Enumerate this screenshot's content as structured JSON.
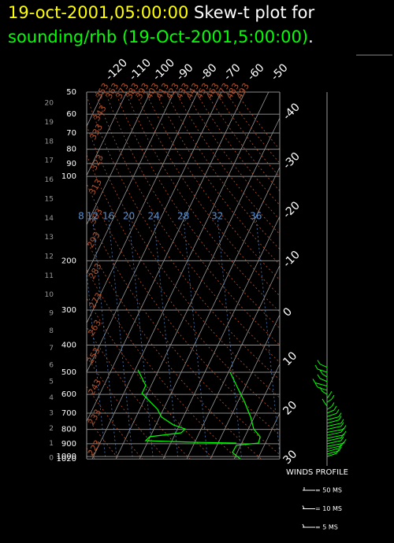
{
  "header": {
    "date": "19-oct-2001,05:00:00",
    "title": "Skew-t plot for",
    "source": "sounding/rhb (19-Oct-2001,5:00:00)",
    "end": "."
  },
  "chart_data": {
    "type": "skewt",
    "pressure_ticks": [
      50,
      60,
      70,
      80,
      90,
      100,
      200,
      300,
      400,
      500,
      600,
      700,
      800,
      900,
      1000,
      1020
    ],
    "height_ticks": [
      0,
      1,
      2,
      3,
      4,
      5,
      6,
      7,
      8,
      9,
      10,
      11,
      12,
      13,
      14,
      15,
      16,
      17,
      18,
      19,
      20
    ],
    "isotherms": [
      -120,
      -110,
      -100,
      -90,
      -80,
      -70,
      -60,
      -50,
      -40,
      -30,
      -20,
      -10,
      0,
      10,
      20,
      30
    ],
    "dry_adiabats": [
      213,
      223,
      233,
      243,
      253,
      263,
      273,
      283,
      293,
      303,
      313,
      323,
      333,
      343,
      353,
      363,
      373,
      383,
      393,
      403,
      413,
      423,
      433,
      443,
      453,
      463,
      473,
      483,
      493
    ],
    "mixing_ratios": [
      8,
      12,
      16,
      20,
      24,
      28,
      32,
      36
    ],
    "temperature": {
      "color": "#00ff00",
      "pressure": [
        500,
        558,
        635,
        723,
        797,
        850,
        895,
        912,
        967,
        1020
      ],
      "values": [
        -9.3,
        -3.9,
        2.6,
        8.5,
        12.2,
        16.5,
        17.1,
        8.2,
        8,
        12.6
      ]
    },
    "dewpoint": {
      "color": "#00ff00",
      "pressure": [
        490,
        558,
        595,
        635,
        678,
        723,
        771,
        797,
        823,
        850,
        878,
        890,
        895
      ],
      "values": [
        -48.8,
        -42.3,
        -42.3,
        -37.4,
        -32.5,
        -29.2,
        -22.6,
        -16.8,
        -17.7,
        -30.2,
        -31.1,
        -9.1,
        7.7
      ]
    },
    "winds": {
      "color": "#00ff00",
      "pressure": [
        480,
        500,
        520,
        540,
        560,
        580,
        600,
        620,
        640,
        660,
        680,
        700,
        720,
        740,
        760,
        780,
        800,
        820,
        840,
        860,
        880,
        900,
        920,
        940,
        960,
        980,
        1000
      ],
      "u": [
        -3,
        -4,
        -2,
        -3,
        -5,
        -4,
        -2,
        1,
        2,
        -1,
        2,
        3,
        4,
        5,
        5,
        6,
        6,
        7,
        6,
        7,
        6,
        6,
        7,
        6,
        5,
        5,
        4
      ]
    },
    "wind_legend": {
      "title": "WINDS PROFILE",
      "items": [
        "= 50 MS",
        "= 10 MS",
        "= 5 MS"
      ]
    }
  }
}
